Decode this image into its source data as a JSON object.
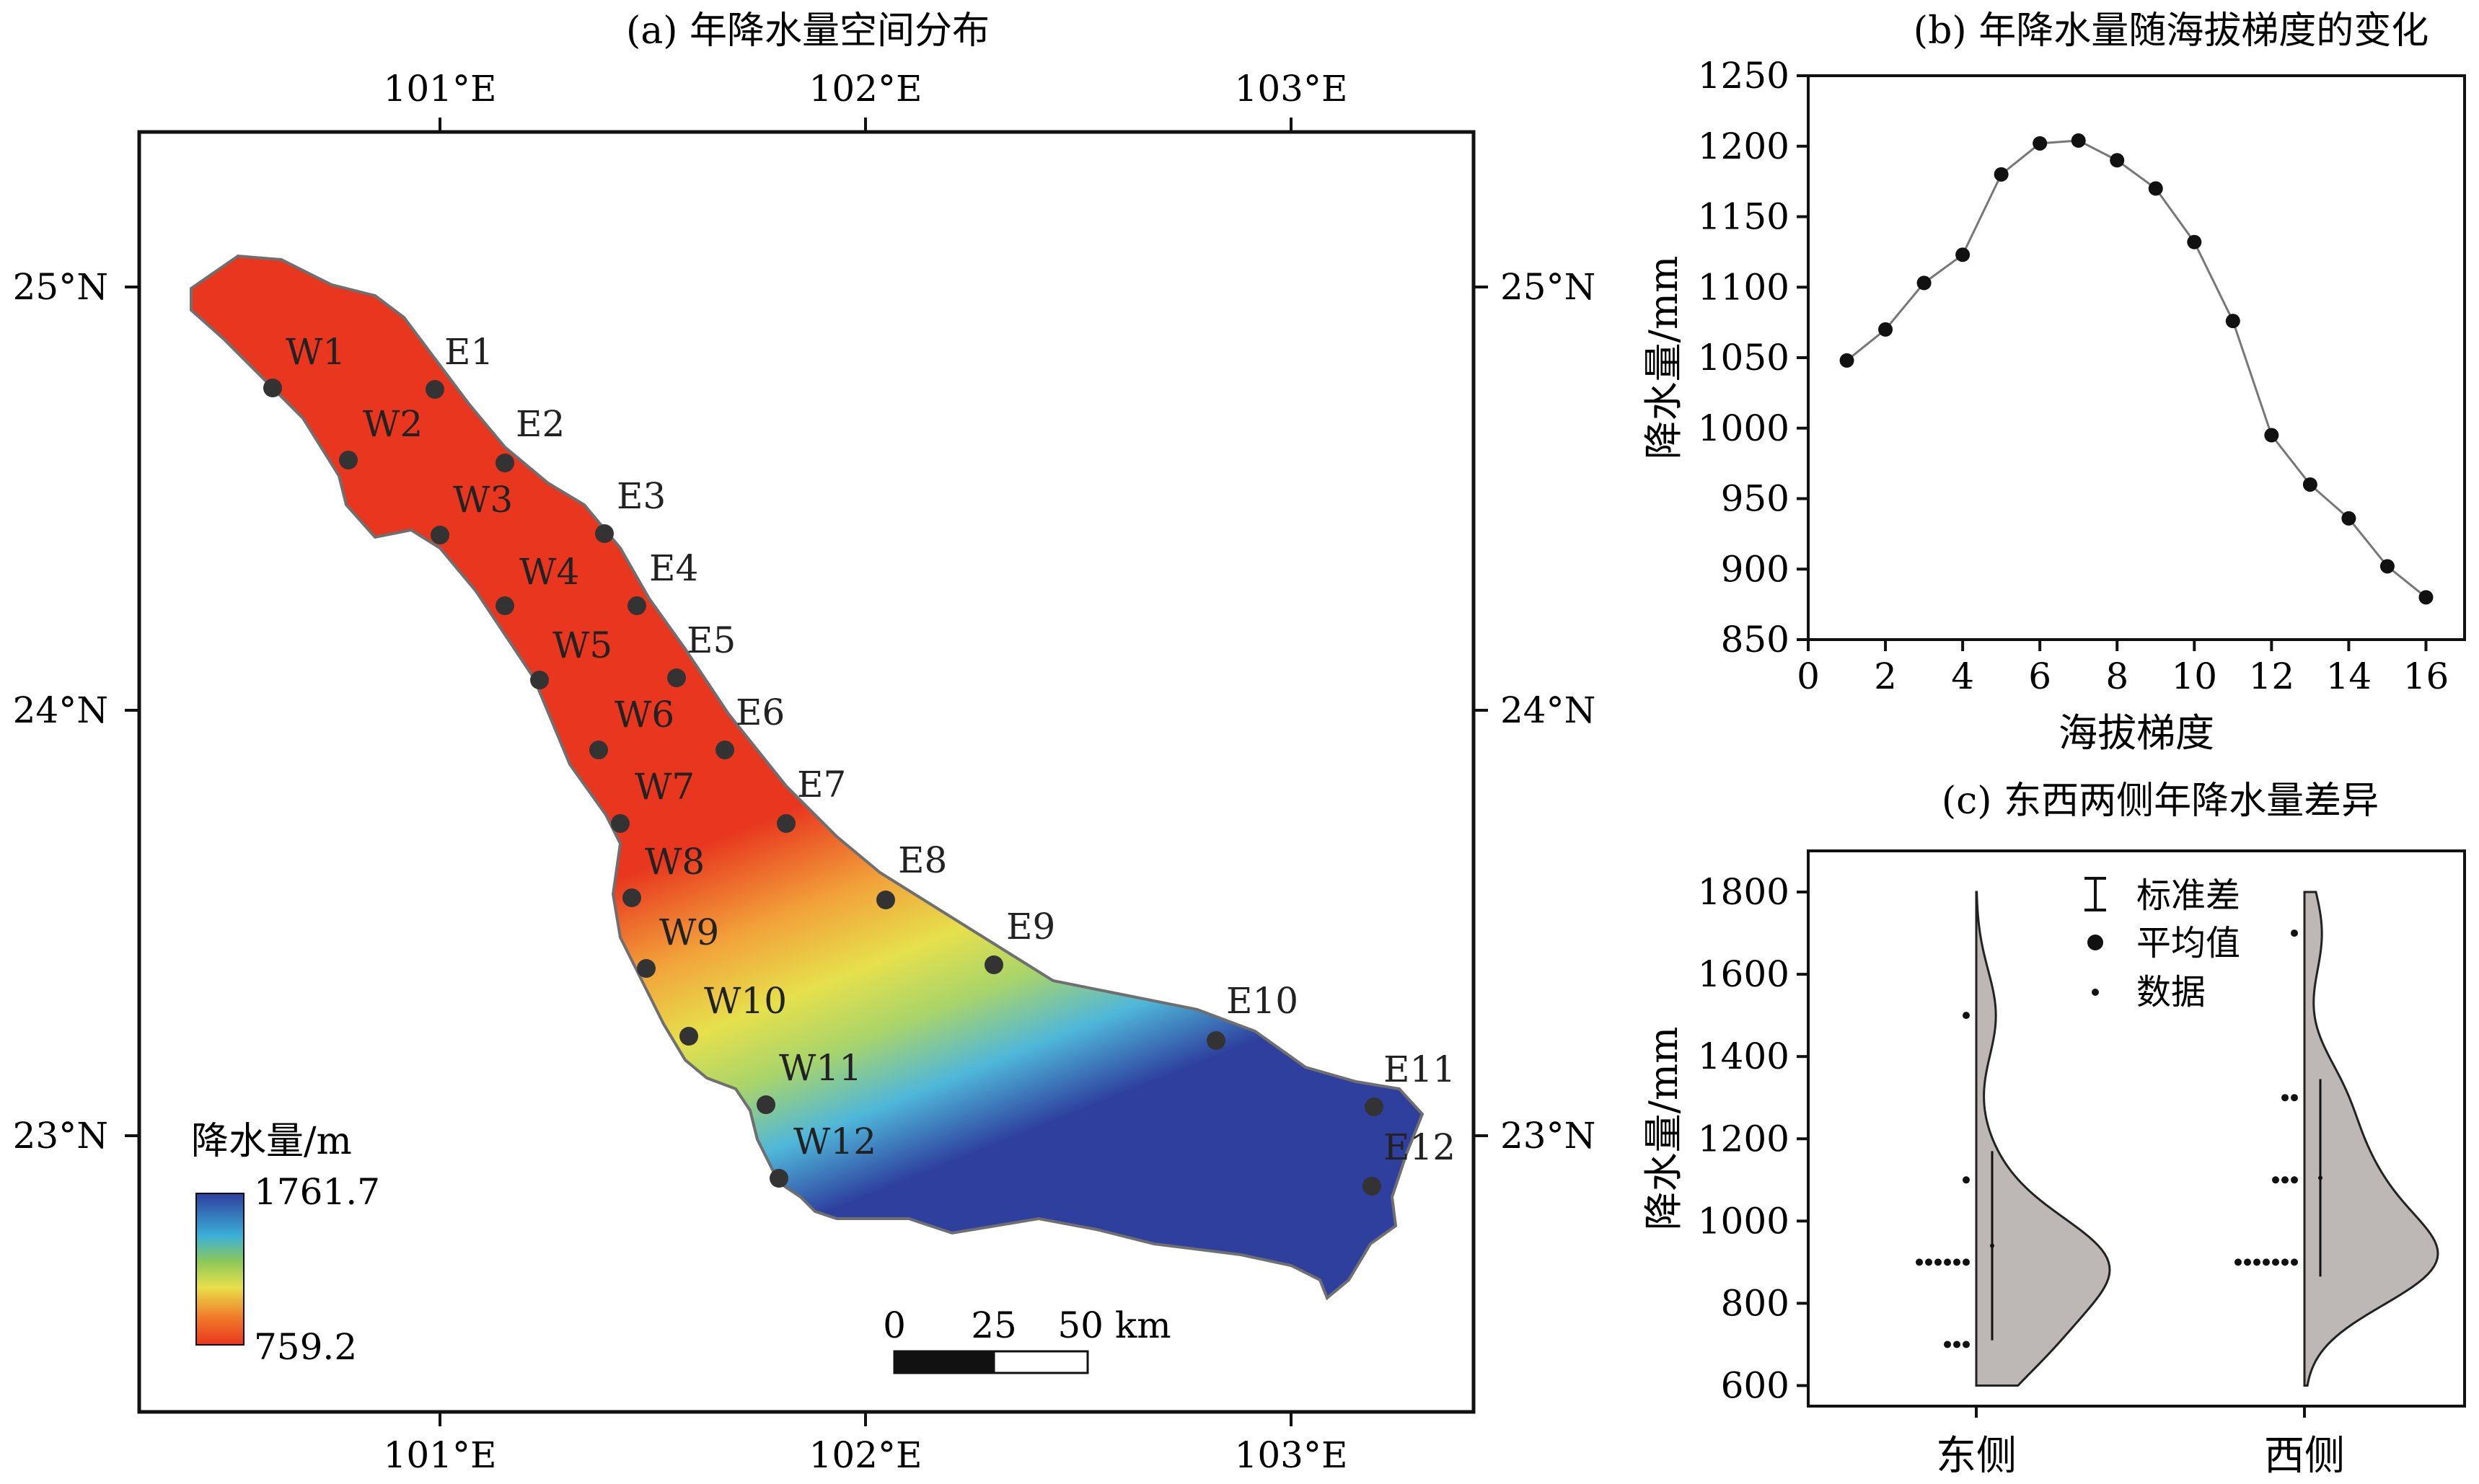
{
  "panel_a": {
    "title": "(a) 年降水量空间分布",
    "lon_ticks": [
      "101°E",
      "102°E",
      "103°E"
    ],
    "lat_ticks": [
      "25°N",
      "24°N",
      "23°N"
    ],
    "legend": {
      "title": "降水量/m",
      "max_label": "1761.7",
      "min_label": "759.2"
    },
    "scale_bar": {
      "labels": [
        "0",
        "25",
        "50 km"
      ]
    },
    "colors": {
      "wet": "#2e3f9e",
      "mid": "#e8e04a",
      "dry": "#e8361f"
    }
  },
  "chart_data": [
    {
      "panel": "b",
      "type": "line",
      "title": "(b) 年降水量随海拔梯度的变化",
      "xlabel": "海拔梯度",
      "ylabel": "降水量/mm",
      "xlim": [
        0,
        17
      ],
      "ylim": [
        850,
        1250
      ],
      "x_ticks": [
        0,
        2,
        4,
        6,
        8,
        10,
        12,
        14,
        16
      ],
      "y_ticks": [
        850,
        900,
        950,
        1000,
        1050,
        1100,
        1150,
        1200,
        1250
      ],
      "x": [
        1,
        2,
        3,
        4,
        5,
        6,
        7,
        8,
        9,
        10,
        11,
        12,
        13,
        14,
        15,
        16
      ],
      "values": [
        1048,
        1070,
        1103,
        1123,
        1180,
        1202,
        1204,
        1190,
        1170,
        1132,
        1076,
        995,
        960,
        936,
        902,
        880
      ],
      "grid": false
    },
    {
      "panel": "c",
      "type": "violin",
      "title": "(c) 东西两侧年降水量差异",
      "ylabel": "降水量/mm",
      "ylim": [
        550,
        1900
      ],
      "y_ticks": [
        600,
        800,
        1000,
        1200,
        1400,
        1600,
        1800
      ],
      "categories": [
        "东侧",
        "西侧"
      ],
      "legend": {
        "position": "top-center",
        "entries": [
          "标准差",
          "平均值",
          "数据"
        ]
      },
      "series": [
        {
          "category": "东侧",
          "min": 600,
          "max": 1800,
          "mean": 940,
          "sd_low": 710,
          "sd_high": 1170,
          "points": [
            1500,
            1100,
            900,
            900,
            900,
            900,
            900,
            900,
            700,
            700,
            700
          ]
        },
        {
          "category": "西侧",
          "min": 600,
          "max": 1800,
          "mean": 1105,
          "sd_low": 865,
          "sd_high": 1345,
          "points": [
            1700,
            1300,
            1300,
            1100,
            1100,
            1100,
            900,
            900,
            900,
            900,
            900,
            900,
            900
          ]
        }
      ]
    }
  ],
  "stations": {
    "west": [
      "W1",
      "W2",
      "W3",
      "W4",
      "W5",
      "W6",
      "W7",
      "W8",
      "W9",
      "W10",
      "W11",
      "W12"
    ],
    "east": [
      "E1",
      "E2",
      "E3",
      "E4",
      "E5",
      "E6",
      "E7",
      "E8",
      "E9",
      "E10",
      "E11",
      "E12"
    ]
  }
}
